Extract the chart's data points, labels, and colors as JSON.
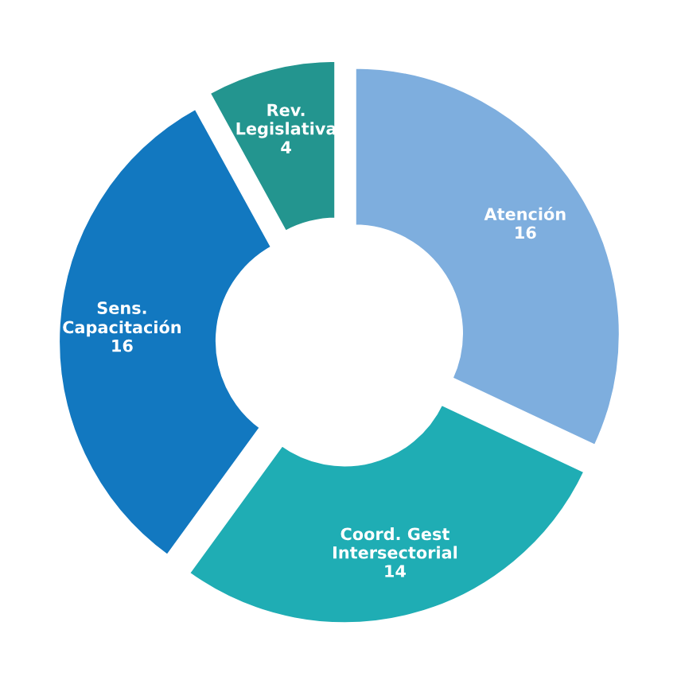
{
  "chart_data": {
    "type": "donut",
    "categories": [
      "Atención",
      "Coord. Gest Intersectorial",
      "Sens. Capacitación",
      "Rev. Legislativa"
    ],
    "values": [
      16,
      14,
      16,
      4
    ],
    "colors": [
      "#7eaede",
      "#1fadb4",
      "#1278c0",
      "#23958f"
    ],
    "data_labels": true
  }
}
